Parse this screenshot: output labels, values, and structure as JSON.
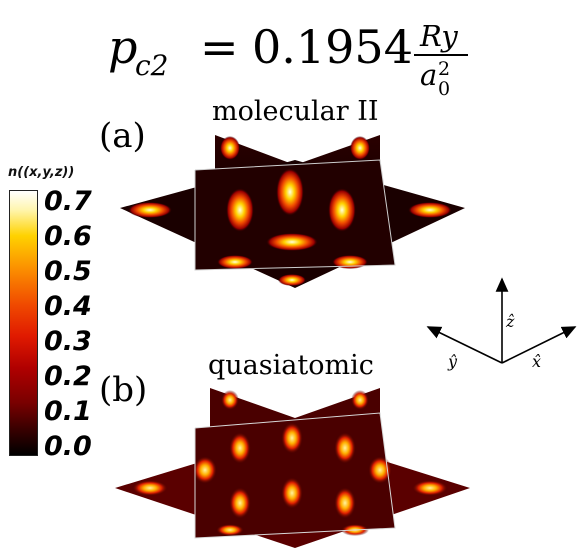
{
  "title": {
    "lhs": "p",
    "lhs_sub": "c2",
    "equals": "=",
    "coefficient": "0.1954",
    "numerator": "Ry",
    "denominator": "a",
    "denominator_sub": "0",
    "denominator_sup": "2"
  },
  "panels": [
    {
      "label": "(a)",
      "name": "molecular II"
    },
    {
      "label": "(b)",
      "name": "quasiatomic"
    }
  ],
  "colorbar": {
    "title": "n((x,y,z))",
    "ticks": [
      "0.7",
      "0.6",
      "0.5",
      "0.4",
      "0.3",
      "0.2",
      "0.1",
      "0.0"
    ],
    "colormap": [
      "#000000",
      "#7a0000",
      "#e01a00",
      "#fb8c00",
      "#ffd200",
      "#ffffff"
    ]
  },
  "axes_triad": {
    "x": "x̂",
    "y": "ŷ",
    "z": "ẑ"
  }
}
